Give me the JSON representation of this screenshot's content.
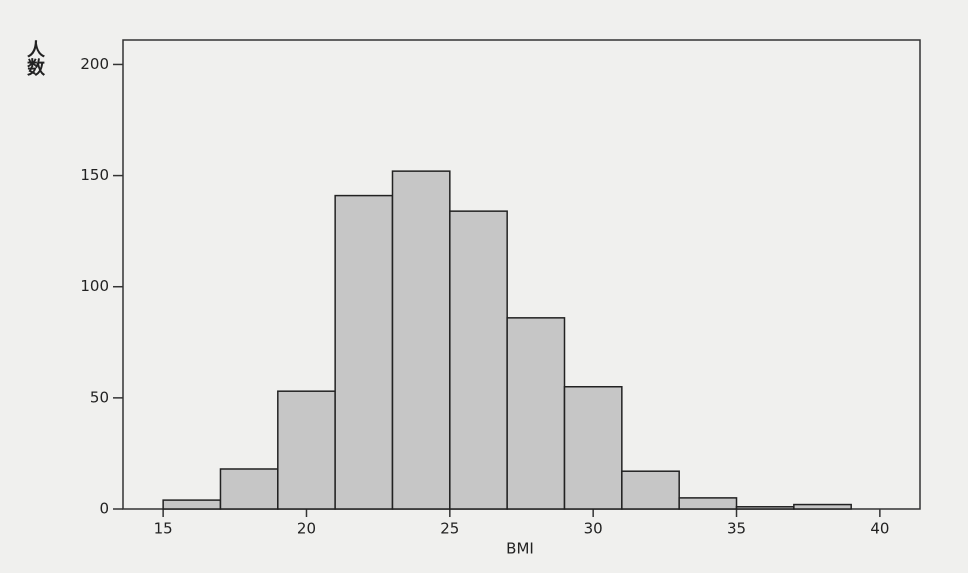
{
  "chart_data": {
    "type": "histogram",
    "x_label": "BMI",
    "y_label": "人数",
    "bins": [
      15,
      17,
      19,
      21,
      23,
      25,
      27,
      29,
      31,
      33,
      35,
      37,
      39
    ],
    "counts": [
      4,
      18,
      53,
      141,
      152,
      134,
      86,
      55,
      17,
      5,
      1,
      2
    ],
    "color": "#c6c6c6",
    "xlim": [
      13.6,
      41.4
    ],
    "xticks": [
      15,
      20,
      25,
      30,
      35,
      40
    ],
    "ylim": [
      0,
      211
    ],
    "yticks": [
      0,
      50,
      100,
      150,
      200
    ]
  }
}
